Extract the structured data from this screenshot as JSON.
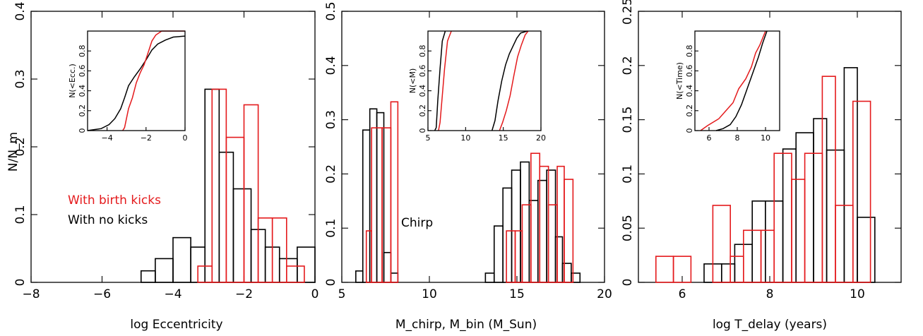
{
  "colors": {
    "black": "#000000",
    "red": "#e41a1c"
  },
  "chart_data": [
    {
      "type": "histogram",
      "xlabel": "log Eccentricity",
      "ylabel": "N/N_m",
      "xlim": [
        -8,
        0
      ],
      "ylim": [
        0,
        0.4
      ],
      "xticks": [
        -8,
        -6,
        -4,
        -2,
        0
      ],
      "yticks": [
        0,
        0.1,
        0.2,
        0.3,
        0.4
      ],
      "legend": [
        {
          "label": "With birth kicks",
          "color": "red"
        },
        {
          "label": "With no kicks",
          "color": "black"
        }
      ],
      "series": [
        {
          "color": "black",
          "bins": [
            {
              "x0": -4.9,
              "x1": -4.5,
              "y": 0.017
            },
            {
              "x0": -4.5,
              "x1": -4.0,
              "y": 0.035
            },
            {
              "x0": -4.0,
              "x1": -3.5,
              "y": 0.066
            },
            {
              "x0": -3.5,
              "x1": -3.1,
              "y": 0.052
            },
            {
              "x0": -3.1,
              "x1": -2.7,
              "y": 0.285
            },
            {
              "x0": -2.7,
              "x1": -2.3,
              "y": 0.192
            },
            {
              "x0": -2.3,
              "x1": -1.8,
              "y": 0.138
            },
            {
              "x0": -1.8,
              "x1": -1.4,
              "y": 0.078
            },
            {
              "x0": -1.4,
              "x1": -1.0,
              "y": 0.052
            },
            {
              "x0": -1.0,
              "x1": -0.5,
              "y": 0.035
            },
            {
              "x0": -0.5,
              "x1": 0.0,
              "y": 0.052
            }
          ]
        },
        {
          "color": "red",
          "bins": [
            {
              "x0": -3.3,
              "x1": -2.9,
              "y": 0.024
            },
            {
              "x0": -2.9,
              "x1": -2.5,
              "y": 0.285
            },
            {
              "x0": -2.5,
              "x1": -2.0,
              "y": 0.214
            },
            {
              "x0": -2.0,
              "x1": -1.6,
              "y": 0.262
            },
            {
              "x0": -1.6,
              "x1": -1.2,
              "y": 0.095
            },
            {
              "x0": -1.2,
              "x1": -0.8,
              "y": 0.095
            },
            {
              "x0": -0.8,
              "x1": -0.3,
              "y": 0.024
            }
          ]
        }
      ],
      "inset": {
        "ylabel": "N(<Ecc.)",
        "xlim": [
          -5,
          0
        ],
        "ylim": [
          0,
          1
        ],
        "xticks": [
          -4,
          -2,
          0
        ],
        "yticks": [
          0,
          0.2,
          0.4,
          0.6,
          0.8
        ],
        "series": [
          {
            "color": "black",
            "points": [
              [
                -5.0,
                0
              ],
              [
                -4.3,
                0.02
              ],
              [
                -3.9,
                0.06
              ],
              [
                -3.6,
                0.12
              ],
              [
                -3.3,
                0.22
              ],
              [
                -3.1,
                0.33
              ],
              [
                -2.9,
                0.45
              ],
              [
                -2.6,
                0.54
              ],
              [
                -2.3,
                0.62
              ],
              [
                -2.0,
                0.71
              ],
              [
                -1.7,
                0.81
              ],
              [
                -1.4,
                0.87
              ],
              [
                -1.0,
                0.91
              ],
              [
                -0.6,
                0.94
              ],
              [
                0.0,
                0.95
              ]
            ]
          },
          {
            "color": "red",
            "points": [
              [
                -3.2,
                0
              ],
              [
                -3.1,
                0.03
              ],
              [
                -2.9,
                0.22
              ],
              [
                -2.7,
                0.33
              ],
              [
                -2.5,
                0.48
              ],
              [
                -2.3,
                0.58
              ],
              [
                -2.1,
                0.66
              ],
              [
                -1.9,
                0.78
              ],
              [
                -1.7,
                0.9
              ],
              [
                -1.5,
                0.96
              ],
              [
                -1.2,
                1.0
              ],
              [
                0.0,
                1.0
              ]
            ]
          }
        ]
      }
    },
    {
      "type": "histogram",
      "xlabel": "M_chirp, M_bin (M_Sun)",
      "annotation": "Chirp",
      "xlim": [
        5,
        20
      ],
      "ylim": [
        0,
        0.5
      ],
      "xticks": [
        5,
        10,
        15,
        20
      ],
      "yticks": [
        0,
        0.1,
        0.2,
        0.3,
        0.4,
        0.5
      ],
      "series": [
        {
          "color": "black",
          "bins": [
            {
              "x0": 5.8,
              "x1": 6.2,
              "y": 0.021
            },
            {
              "x0": 6.2,
              "x1": 6.6,
              "y": 0.281
            },
            {
              "x0": 6.6,
              "x1": 7.0,
              "y": 0.32
            },
            {
              "x0": 7.0,
              "x1": 7.4,
              "y": 0.313
            },
            {
              "x0": 7.4,
              "x1": 7.8,
              "y": 0.055
            },
            {
              "x0": 7.8,
              "x1": 8.2,
              "y": 0.017
            },
            {
              "x0": 13.2,
              "x1": 13.7,
              "y": 0.017
            },
            {
              "x0": 13.7,
              "x1": 14.2,
              "y": 0.104
            },
            {
              "x0": 14.2,
              "x1": 14.7,
              "y": 0.174
            },
            {
              "x0": 14.7,
              "x1": 15.2,
              "y": 0.207
            },
            {
              "x0": 15.2,
              "x1": 15.7,
              "y": 0.222
            },
            {
              "x0": 15.7,
              "x1": 16.2,
              "y": 0.151
            },
            {
              "x0": 16.2,
              "x1": 16.7,
              "y": 0.188
            },
            {
              "x0": 16.7,
              "x1": 17.2,
              "y": 0.207
            },
            {
              "x0": 17.2,
              "x1": 17.6,
              "y": 0.084
            },
            {
              "x0": 17.6,
              "x1": 18.1,
              "y": 0.035
            },
            {
              "x0": 18.1,
              "x1": 18.6,
              "y": 0.017
            }
          ]
        },
        {
          "color": "red",
          "bins": [
            {
              "x0": 6.4,
              "x1": 6.7,
              "y": 0.095
            },
            {
              "x0": 6.7,
              "x1": 7.3,
              "y": 0.285
            },
            {
              "x0": 7.3,
              "x1": 7.8,
              "y": 0.285
            },
            {
              "x0": 7.8,
              "x1": 8.2,
              "y": 0.333
            },
            {
              "x0": 14.4,
              "x1": 14.9,
              "y": 0.095
            },
            {
              "x0": 14.9,
              "x1": 15.3,
              "y": 0.095
            },
            {
              "x0": 15.3,
              "x1": 15.8,
              "y": 0.143
            },
            {
              "x0": 15.8,
              "x1": 16.3,
              "y": 0.238
            },
            {
              "x0": 16.3,
              "x1": 16.8,
              "y": 0.214
            },
            {
              "x0": 16.8,
              "x1": 17.3,
              "y": 0.143
            },
            {
              "x0": 17.3,
              "x1": 17.7,
              "y": 0.214
            },
            {
              "x0": 17.7,
              "x1": 18.2,
              "y": 0.19
            }
          ]
        }
      ],
      "inset": {
        "ylabel": "N(<M)",
        "xlim": [
          5,
          20
        ],
        "ylim": [
          0,
          1
        ],
        "xticks": [
          5,
          10,
          15,
          20
        ],
        "yticks": [
          0,
          0.2,
          0.4,
          0.6,
          0.8
        ],
        "series": [
          {
            "color": "black",
            "points": [
              [
                5.9,
                0
              ],
              [
                6.1,
                0.03
              ],
              [
                6.3,
                0.3
              ],
              [
                6.6,
                0.62
              ],
              [
                6.9,
                0.9
              ],
              [
                7.3,
                1.0
              ]
            ]
          },
          {
            "color": "black",
            "points": [
              [
                13.5,
                0
              ],
              [
                13.9,
                0.1
              ],
              [
                14.3,
                0.3
              ],
              [
                14.8,
                0.5
              ],
              [
                15.3,
                0.66
              ],
              [
                15.8,
                0.77
              ],
              [
                16.3,
                0.85
              ],
              [
                16.8,
                0.93
              ],
              [
                17.3,
                0.98
              ],
              [
                18.2,
                1.0
              ]
            ]
          },
          {
            "color": "red",
            "points": [
              [
                6.4,
                0
              ],
              [
                6.6,
                0.08
              ],
              [
                6.9,
                0.35
              ],
              [
                7.2,
                0.62
              ],
              [
                7.6,
                0.9
              ],
              [
                8.1,
                1.0
              ]
            ]
          },
          {
            "color": "red",
            "points": [
              [
                14.5,
                0
              ],
              [
                14.9,
                0.08
              ],
              [
                15.4,
                0.2
              ],
              [
                15.9,
                0.35
              ],
              [
                16.4,
                0.55
              ],
              [
                16.9,
                0.74
              ],
              [
                17.4,
                0.86
              ],
              [
                17.9,
                0.96
              ],
              [
                18.3,
                1.0
              ]
            ]
          }
        ]
      }
    },
    {
      "type": "histogram",
      "xlabel": "log T_delay (years)",
      "xlim": [
        5,
        11
      ],
      "ylim": [
        0,
        0.25
      ],
      "xticks": [
        6,
        8,
        10
      ],
      "yticks": [
        0,
        0.05,
        0.1,
        0.15,
        0.2,
        0.25
      ],
      "series": [
        {
          "color": "black",
          "bins": [
            {
              "x0": 6.5,
              "x1": 6.9,
              "y": 0.017
            },
            {
              "x0": 6.9,
              "x1": 7.2,
              "y": 0.017
            },
            {
              "x0": 7.2,
              "x1": 7.6,
              "y": 0.035
            },
            {
              "x0": 7.6,
              "x1": 7.9,
              "y": 0.075
            },
            {
              "x0": 7.9,
              "x1": 8.3,
              "y": 0.075
            },
            {
              "x0": 8.3,
              "x1": 8.6,
              "y": 0.123
            },
            {
              "x0": 8.6,
              "x1": 9.0,
              "y": 0.138
            },
            {
              "x0": 9.0,
              "x1": 9.3,
              "y": 0.151
            },
            {
              "x0": 9.3,
              "x1": 9.7,
              "y": 0.122
            },
            {
              "x0": 9.7,
              "x1": 10.0,
              "y": 0.198
            },
            {
              "x0": 10.0,
              "x1": 10.4,
              "y": 0.06
            }
          ]
        },
        {
          "color": "red",
          "bins": [
            {
              "x0": 5.4,
              "x1": 5.8,
              "y": 0.024
            },
            {
              "x0": 5.8,
              "x1": 6.2,
              "y": 0.024
            },
            {
              "x0": 6.7,
              "x1": 7.1,
              "y": 0.071
            },
            {
              "x0": 7.1,
              "x1": 7.4,
              "y": 0.024
            },
            {
              "x0": 7.4,
              "x1": 7.8,
              "y": 0.048
            },
            {
              "x0": 7.8,
              "x1": 8.1,
              "y": 0.048
            },
            {
              "x0": 8.1,
              "x1": 8.5,
              "y": 0.119
            },
            {
              "x0": 8.5,
              "x1": 8.8,
              "y": 0.095
            },
            {
              "x0": 8.8,
              "x1": 9.2,
              "y": 0.119
            },
            {
              "x0": 9.2,
              "x1": 9.5,
              "y": 0.19
            },
            {
              "x0": 9.5,
              "x1": 9.9,
              "y": 0.071
            },
            {
              "x0": 9.9,
              "x1": 10.3,
              "y": 0.167
            }
          ]
        }
      ],
      "inset": {
        "ylabel": "N(<Time)",
        "xlim": [
          5,
          11
        ],
        "ylim": [
          0,
          1
        ],
        "xticks": [
          6,
          8,
          10
        ],
        "yticks": [
          0,
          0.2,
          0.4,
          0.6,
          0.8
        ],
        "series": [
          {
            "color": "black",
            "points": [
              [
                6.5,
                0
              ],
              [
                7.0,
                0.02
              ],
              [
                7.5,
                0.06
              ],
              [
                7.9,
                0.14
              ],
              [
                8.3,
                0.26
              ],
              [
                8.7,
                0.42
              ],
              [
                9.1,
                0.58
              ],
              [
                9.5,
                0.74
              ],
              [
                9.8,
                0.88
              ],
              [
                10.1,
                1.0
              ]
            ]
          },
          {
            "color": "red",
            "points": [
              [
                5.4,
                0
              ],
              [
                5.9,
                0.05
              ],
              [
                6.7,
                0.12
              ],
              [
                7.2,
                0.2
              ],
              [
                7.7,
                0.28
              ],
              [
                8.1,
                0.42
              ],
              [
                8.6,
                0.52
              ],
              [
                9.0,
                0.64
              ],
              [
                9.3,
                0.78
              ],
              [
                9.6,
                0.86
              ],
              [
                10.0,
                1.0
              ]
            ]
          }
        ]
      }
    }
  ]
}
